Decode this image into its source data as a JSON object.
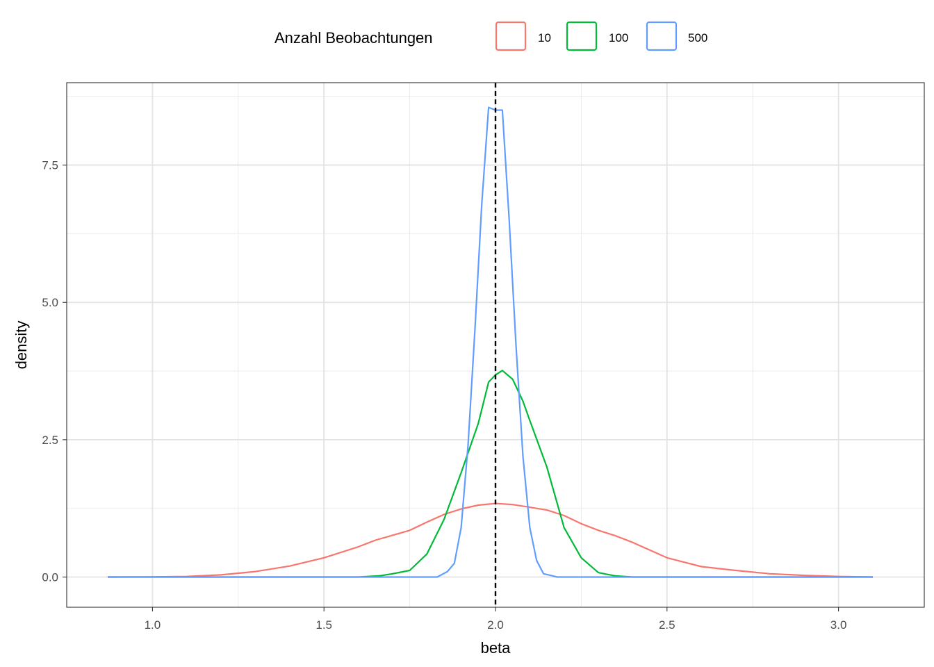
{
  "chart_data": {
    "type": "line",
    "xlabel": "beta",
    "ylabel": "density",
    "xlim": [
      0.75,
      3.25
    ],
    "ylim": [
      -0.55,
      9.0
    ],
    "x_ticks": [
      1.0,
      1.5,
      2.0,
      2.5,
      3.0
    ],
    "x_tick_labels": [
      "1.0",
      "1.5",
      "2.0",
      "2.5",
      "3.0"
    ],
    "y_ticks": [
      0.0,
      2.5,
      5.0,
      7.5
    ],
    "y_tick_labels": [
      "0.0",
      "2.5",
      "5.0",
      "7.5"
    ],
    "grid": true,
    "reference_line": {
      "x": 2.0,
      "style": "dashed",
      "color": "#000000"
    },
    "legend": {
      "title": "Anzahl Beobachtungen",
      "position": "top",
      "entries": [
        "10",
        "100",
        "500"
      ]
    },
    "series": [
      {
        "name": "10",
        "color": "#F8766D",
        "points": [
          [
            0.87,
            0.0
          ],
          [
            1.0,
            0.003
          ],
          [
            1.1,
            0.01
          ],
          [
            1.2,
            0.04
          ],
          [
            1.3,
            0.1
          ],
          [
            1.4,
            0.2
          ],
          [
            1.5,
            0.35
          ],
          [
            1.6,
            0.55
          ],
          [
            1.65,
            0.67
          ],
          [
            1.7,
            0.76
          ],
          [
            1.75,
            0.85
          ],
          [
            1.8,
            1.0
          ],
          [
            1.85,
            1.14
          ],
          [
            1.9,
            1.24
          ],
          [
            1.95,
            1.31
          ],
          [
            2.0,
            1.34
          ],
          [
            2.05,
            1.32
          ],
          [
            2.1,
            1.27
          ],
          [
            2.15,
            1.22
          ],
          [
            2.2,
            1.12
          ],
          [
            2.25,
            0.97
          ],
          [
            2.3,
            0.85
          ],
          [
            2.35,
            0.75
          ],
          [
            2.4,
            0.63
          ],
          [
            2.5,
            0.35
          ],
          [
            2.6,
            0.19
          ],
          [
            2.7,
            0.12
          ],
          [
            2.8,
            0.06
          ],
          [
            2.9,
            0.03
          ],
          [
            3.0,
            0.01
          ],
          [
            3.1,
            0.0
          ]
        ]
      },
      {
        "name": "100",
        "color": "#00BA38",
        "points": [
          [
            0.87,
            0.0
          ],
          [
            1.6,
            0.0
          ],
          [
            1.66,
            0.02
          ],
          [
            1.7,
            0.06
          ],
          [
            1.75,
            0.12
          ],
          [
            1.8,
            0.42
          ],
          [
            1.85,
            1.05
          ],
          [
            1.9,
            1.9
          ],
          [
            1.95,
            2.8
          ],
          [
            1.98,
            3.55
          ],
          [
            2.0,
            3.68
          ],
          [
            2.02,
            3.76
          ],
          [
            2.05,
            3.6
          ],
          [
            2.08,
            3.2
          ],
          [
            2.1,
            2.85
          ],
          [
            2.15,
            2.0
          ],
          [
            2.2,
            0.9
          ],
          [
            2.25,
            0.35
          ],
          [
            2.3,
            0.08
          ],
          [
            2.35,
            0.02
          ],
          [
            2.4,
            0.0
          ],
          [
            3.1,
            0.0
          ]
        ]
      },
      {
        "name": "500",
        "color": "#619CFF",
        "points": [
          [
            0.87,
            0.0
          ],
          [
            1.83,
            0.0
          ],
          [
            1.86,
            0.1
          ],
          [
            1.88,
            0.25
          ],
          [
            1.9,
            0.9
          ],
          [
            1.92,
            2.4
          ],
          [
            1.94,
            4.5
          ],
          [
            1.96,
            6.8
          ],
          [
            1.98,
            8.55
          ],
          [
            2.0,
            8.5
          ],
          [
            2.02,
            8.5
          ],
          [
            2.04,
            6.5
          ],
          [
            2.06,
            4.2
          ],
          [
            2.08,
            2.2
          ],
          [
            2.1,
            0.9
          ],
          [
            2.12,
            0.3
          ],
          [
            2.14,
            0.06
          ],
          [
            2.16,
            0.03
          ],
          [
            2.18,
            0.0
          ],
          [
            3.1,
            0.0
          ]
        ]
      }
    ]
  }
}
